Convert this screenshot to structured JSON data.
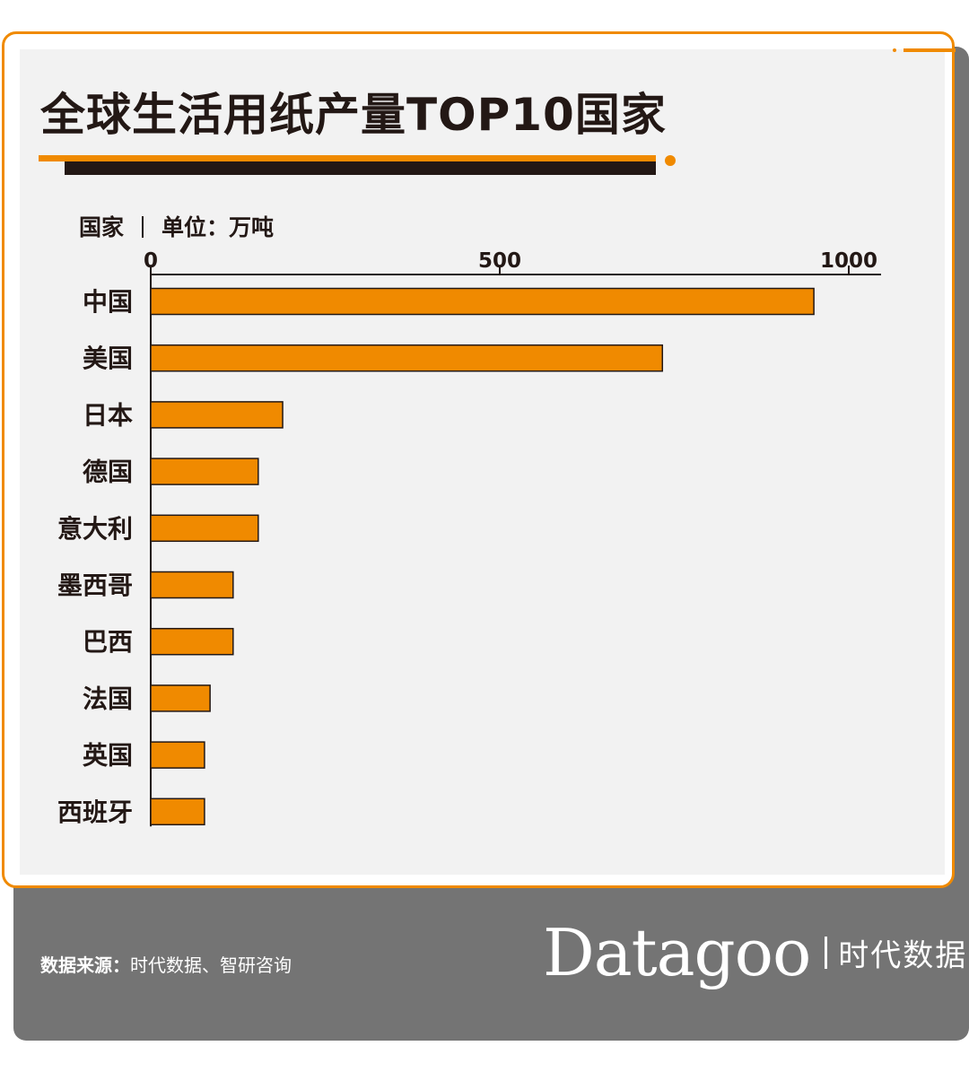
{
  "title": "全球生活用纸产量TOP10国家",
  "axis_caption": {
    "category": "国家",
    "unit": "单位：万吨"
  },
  "colors": {
    "accent": "#f08a00",
    "bar": "#f08a00",
    "dark": "#231815",
    "footer_bg": "#747474"
  },
  "chart_data": {
    "type": "bar",
    "orientation": "horizontal",
    "categories": [
      "中国",
      "美国",
      "日本",
      "德国",
      "意大利",
      "墨西哥",
      "巴西",
      "法国",
      "英国",
      "西班牙"
    ],
    "values": [
      950,
      733,
      189,
      154,
      154,
      118,
      118,
      85,
      77,
      77
    ],
    "xlim": [
      0,
      1000
    ],
    "xticks": [
      "0",
      "500",
      "1000"
    ],
    "xlabel": "",
    "ylabel": "国家",
    "unit": "万吨",
    "grid": false,
    "legend": "none"
  },
  "footer": {
    "source_label": "数据来源：",
    "source_text": "时代数据、智研咨询",
    "brand_logo": "Datagoo",
    "brand_name": "时代数据"
  }
}
